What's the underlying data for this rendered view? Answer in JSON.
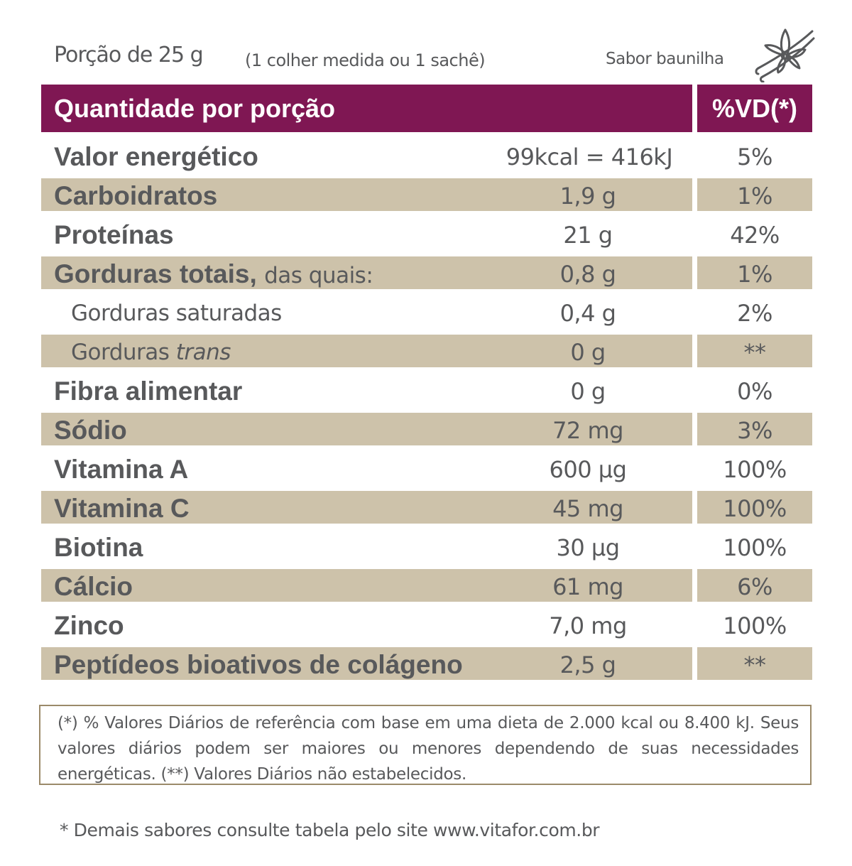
{
  "serving": {
    "label": "Porção de 25 g",
    "note": "(1 colher medida ou 1 sachê)"
  },
  "flavor": {
    "label": "Sabor baunilha",
    "icon": "vanilla-flower-icon"
  },
  "colors": {
    "header": "#7f1753",
    "band": "#cdc2aa",
    "text": "#58595b",
    "border": "#9b8a6a"
  },
  "header": {
    "quantity": "Quantidade por porção",
    "vd": "%VD(*)"
  },
  "rows": [
    {
      "name": "Valor energético",
      "value": "99kcal = 416kJ",
      "vd": "5%"
    },
    {
      "name": "Carboidratos",
      "value": "1,9 g",
      "vd": "1%"
    },
    {
      "name": "Proteínas",
      "value": "21 g",
      "vd": "42%"
    },
    {
      "name": "Gorduras totais,",
      "extra": "das quais:",
      "value": "0,8 g",
      "vd": "1%"
    },
    {
      "name": "Gorduras saturadas",
      "value": "0,4 g",
      "vd": "2%"
    },
    {
      "name": "Gorduras",
      "extra": "trans",
      "value": "0 g",
      "vd": "**"
    },
    {
      "name": "Fibra alimentar",
      "value": "0 g",
      "vd": "0%"
    },
    {
      "name": "Sódio",
      "value": "72 mg",
      "vd": "3%"
    },
    {
      "name": "Vitamina A",
      "value": "600 µg",
      "vd": "100%"
    },
    {
      "name": "Vitamina C",
      "value": "45 mg",
      "vd": "100%"
    },
    {
      "name": "Biotina",
      "value": "30 µg",
      "vd": "100%"
    },
    {
      "name": "Cálcio",
      "value": "61 mg",
      "vd": "6%"
    },
    {
      "name": "Zinco",
      "value": "7,0 mg",
      "vd": "100%"
    },
    {
      "name": "Peptídeos bioativos de colágeno",
      "value": "2,5 g",
      "vd": "**"
    }
  ],
  "note": "(*) % Valores Diários de referência com base em uma dieta de 2.000 kcal ou 8.400 kJ. Seus valores diários podem ser maiores ou menores dependendo de suas necessidades energéticas. (**) Valores Diários não estabelecidos.",
  "footer": "* Demais sabores consulte tabela pelo site www.vitafor.com.br"
}
